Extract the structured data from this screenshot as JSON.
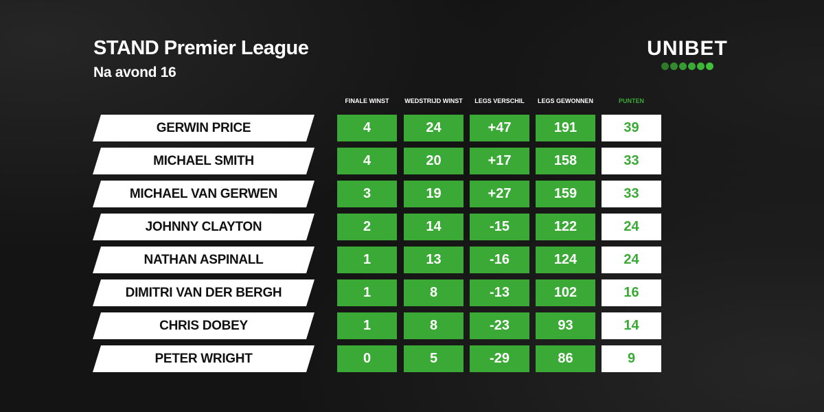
{
  "header": {
    "title": "STAND Premier League",
    "subtitle": "Na avond 16"
  },
  "logo": {
    "text": "UNIBET",
    "dot_colors": [
      "#2e7a2a",
      "#338a2f",
      "#379a33",
      "#3aa935",
      "#3db537",
      "#42c03b"
    ]
  },
  "colors": {
    "accent": "#3aa935",
    "background": "#141414"
  },
  "columns": [
    "FINALE WINST",
    "WEDSTRIJD WINST",
    "LEGS VERSCHIL",
    "LEGS GEWONNEN",
    "PUNTEN"
  ],
  "rows": [
    {
      "name": "GERWIN PRICE",
      "values": [
        "4",
        "24",
        "+47",
        "191",
        "39"
      ]
    },
    {
      "name": "MICHAEL SMITH",
      "values": [
        "4",
        "20",
        "+17",
        "158",
        "33"
      ]
    },
    {
      "name": "MICHAEL VAN GERWEN",
      "values": [
        "3",
        "19",
        "+27",
        "159",
        "33"
      ]
    },
    {
      "name": "JOHNNY CLAYTON",
      "values": [
        "2",
        "14",
        "-15",
        "122",
        "24"
      ]
    },
    {
      "name": "NATHAN ASPINALL",
      "values": [
        "1",
        "13",
        "-16",
        "124",
        "24"
      ]
    },
    {
      "name": "DIMITRI VAN DER BERGH",
      "values": [
        "1",
        "8",
        "-13",
        "102",
        "16"
      ]
    },
    {
      "name": "CHRIS DOBEY",
      "values": [
        "1",
        "8",
        "-23",
        "93",
        "14"
      ]
    },
    {
      "name": "PETER WRIGHT",
      "values": [
        "0",
        "5",
        "-29",
        "86",
        "9"
      ]
    }
  ]
}
